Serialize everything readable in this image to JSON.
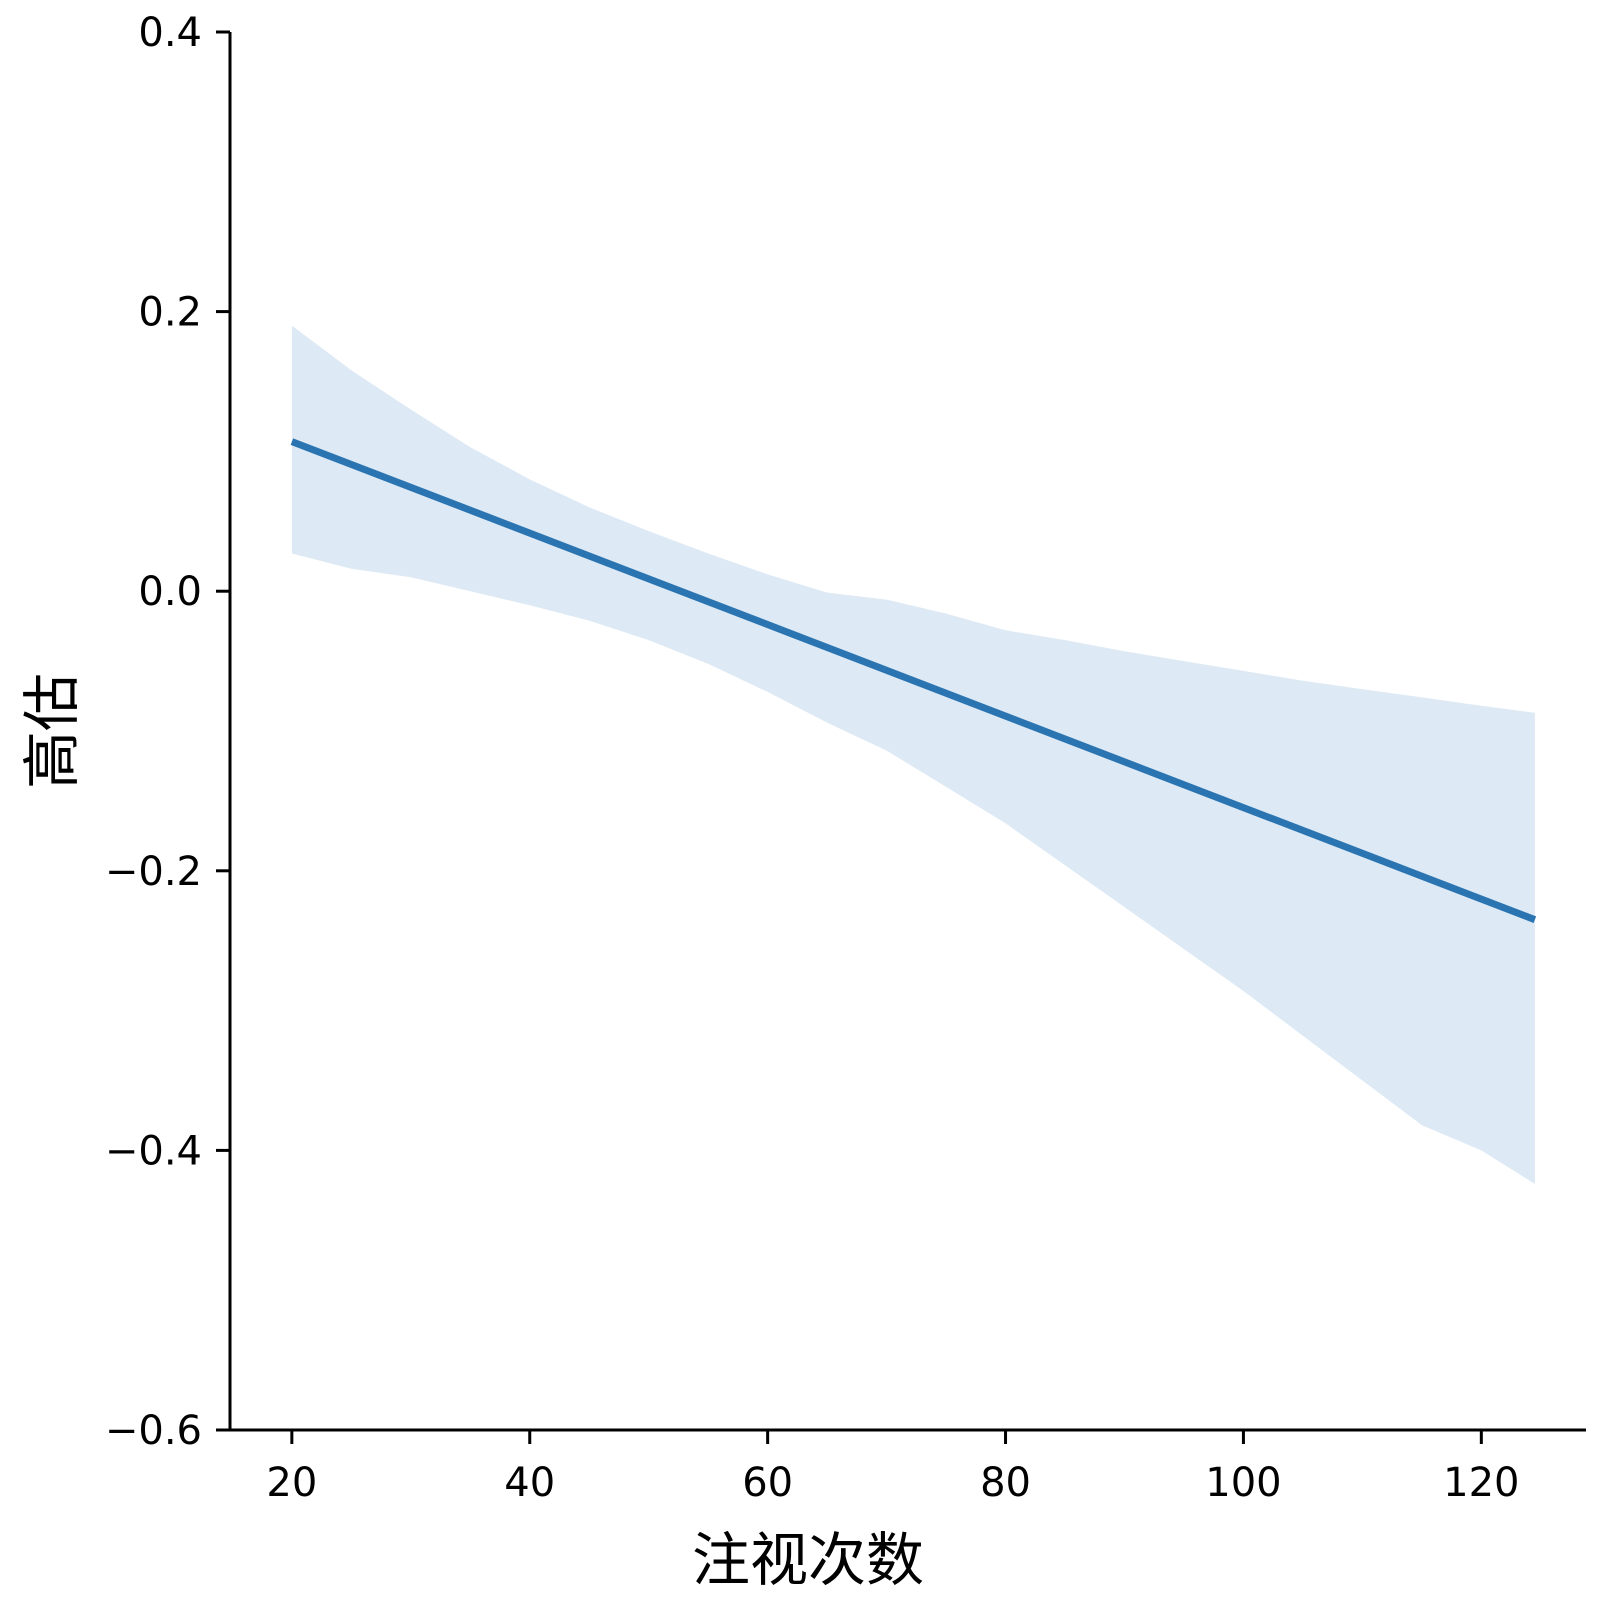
{
  "chart_data": {
    "type": "line",
    "title": "",
    "xlabel": "注视次数",
    "ylabel": "高估",
    "xlim": [
      14.8,
      128.8
    ],
    "ylim": [
      -0.6,
      0.4
    ],
    "xticks": [
      20,
      40,
      60,
      80,
      100,
      120
    ],
    "yticks": [
      -0.6,
      -0.4,
      -0.2,
      0.0,
      0.2,
      0.4
    ],
    "xtick_labels": [
      "20",
      "40",
      "60",
      "80",
      "100",
      "120"
    ],
    "ytick_labels": [
      "−0.6",
      "−0.4",
      "−0.2",
      "0.0",
      "0.2",
      "0.4"
    ],
    "grid": false,
    "series": [
      {
        "kind": "regression-line",
        "x": [
          20,
          124.5
        ],
        "y": [
          0.107,
          -0.235
        ],
        "color": "#2a74b2"
      }
    ],
    "confidence_band": {
      "color": "#dde9f4",
      "x": [
        20,
        25,
        30,
        35,
        40,
        45,
        50,
        55,
        60,
        65,
        70,
        75,
        80,
        85,
        90,
        95,
        100,
        105,
        110,
        115,
        120,
        124.5
      ],
      "upper": [
        0.19,
        0.158,
        0.13,
        0.103,
        0.08,
        0.06,
        0.043,
        0.027,
        0.012,
        -0.001,
        -0.006,
        -0.016,
        -0.028,
        -0.035,
        -0.043,
        -0.05,
        -0.057,
        -0.064,
        -0.07,
        -0.076,
        -0.082,
        -0.087
      ],
      "lower": [
        0.027,
        0.016,
        0.01,
        0.0,
        -0.01,
        -0.021,
        -0.035,
        -0.052,
        -0.072,
        -0.094,
        -0.114,
        -0.14,
        -0.166,
        -0.196,
        -0.226,
        -0.256,
        -0.286,
        -0.318,
        -0.35,
        -0.382,
        -0.4,
        -0.424
      ]
    },
    "spines": [
      "left",
      "bottom"
    ]
  }
}
